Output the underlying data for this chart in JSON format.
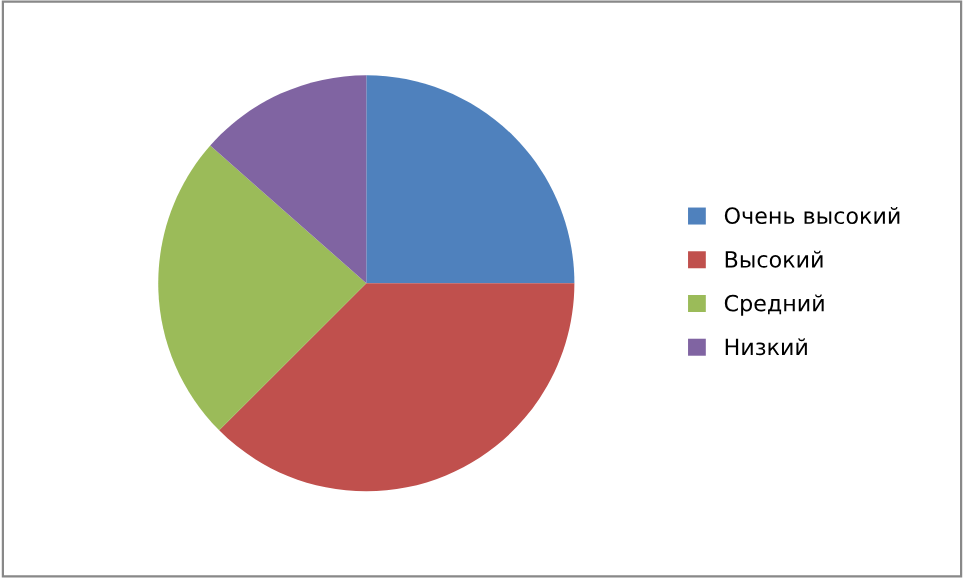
{
  "chart_data": {
    "type": "pie",
    "categories": [
      "Очень высокий",
      "Высокий",
      "Средний",
      "Низкий"
    ],
    "values": [
      25,
      37.5,
      24,
      13.5
    ],
    "colors": [
      "#4f81bd",
      "#c0504d",
      "#9bbb59",
      "#8064a2"
    ],
    "legend": "right"
  }
}
